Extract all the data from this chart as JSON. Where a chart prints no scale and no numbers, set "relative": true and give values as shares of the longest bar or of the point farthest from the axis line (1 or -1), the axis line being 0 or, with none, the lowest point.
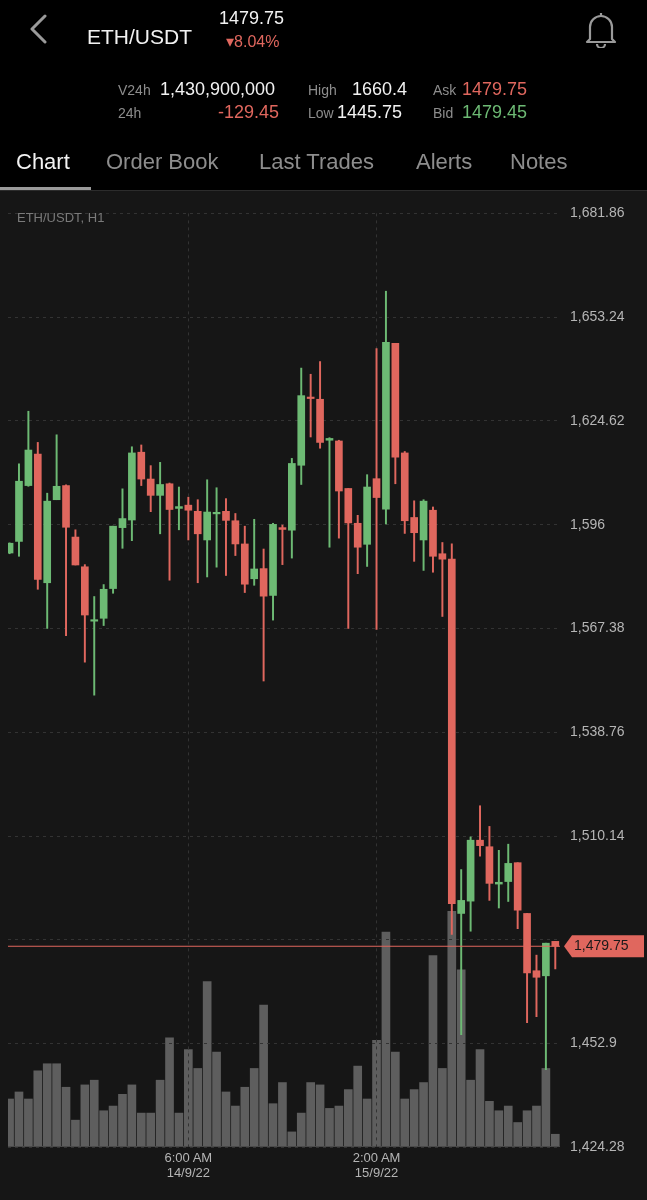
{
  "chart_data": [
    {
      "type": "candlestick",
      "title": "ETH/USDT",
      "subtitle": "ETH/USDT, H1",
      "annotations": [
        "1479.75",
        "▾8.04%",
        "V24h",
        "1,430,900,000",
        "High",
        "1660.4",
        "Ask",
        "1479.75",
        "24h",
        "-129.45",
        "Low",
        "1445.75",
        "Bid",
        "1479.45",
        "Chart",
        "Order Book",
        "Last Trades",
        "Alerts",
        "Notes"
      ],
      "x": [
        "--09-13T11:00",
        "--09-13T12:00",
        "--09-13T13:00",
        "--09-13T14:00",
        "--09-13T15:00",
        "--09-13T16:00",
        "--09-13T17:00",
        "--09-13T18:00",
        "--09-13T19:00",
        "--09-13T20:00",
        "--09-13T21:00",
        "--09-13T22:00",
        "--09-13T23:00",
        "--09-14T00:00",
        "--09-14T01:00",
        "--09-14T02:00",
        "--09-14T03:00",
        "--09-14T04:00",
        "--09-14T05:00",
        "--09-14T06:00",
        "--09-14T07:00",
        "--09-14T08:00",
        "--09-14T09:00",
        "--09-14T10:00",
        "--09-14T11:00",
        "--09-14T12:00",
        "--09-14T13:00",
        "--09-14T14:00",
        "--09-14T15:00",
        "--09-14T16:00",
        "--09-14T17:00",
        "--09-14T18:00",
        "--09-14T19:00",
        "--09-14T20:00",
        "--09-14T21:00",
        "--09-14T22:00",
        "--09-14T23:00",
        "--09-15T00:00",
        "--09-15T01:00",
        "--09-15T02:00",
        "--09-15T03:00",
        "--09-15T04:00",
        "--09-15T05:00",
        "--09-15T06:00",
        "--09-15T07:00",
        "--09-15T08:00",
        "--09-15T09:00",
        "--09-15T10:00",
        "--09-15T11:00",
        "--09-15T12:00",
        "--09-15T13:00",
        "--09-15T14:00",
        "--09-15T15:00",
        "--09-15T16:00",
        "--09-15T17:00",
        "--09-15T18:00",
        "--09-15T19:00",
        "--09-15T20:00",
        "--09-15T21:00"
      ],
      "ohlc": [
        [
          1588.2,
          1591,
          1588,
          1590.9
        ],
        [
          1591.4,
          1612.8,
          1587.3,
          1608.0
        ],
        [
          1606.8,
          1627.3,
          1606.6,
          1616.6
        ],
        [
          1615.5,
          1618.7,
          1578.2,
          1580.9
        ],
        [
          1580.0,
          1604.7,
          1567.4,
          1602.5
        ],
        [
          1602.9,
          1620.8,
          1602.9,
          1606.6
        ],
        [
          1606.8,
          1607.0,
          1565.4,
          1595.3
        ],
        [
          1592.6,
          1594.6,
          1584.9,
          1584.9
        ],
        [
          1584.4,
          1585.0,
          1558.1,
          1571.1
        ],
        [
          1569.4,
          1576.2,
          1549.0,
          1569.8
        ],
        [
          1570.2,
          1579.5,
          1568.2,
          1578.2
        ],
        [
          1578.4,
          1595.6,
          1577.1,
          1595.6
        ],
        [
          1595.2,
          1605.9,
          1589.5,
          1597.7
        ],
        [
          1597.3,
          1617.5,
          1591.6,
          1615.8
        ],
        [
          1616.0,
          1618.0,
          1606.8,
          1608.6
        ],
        [
          1608.6,
          1612.3,
          1599.6,
          1604.1
        ],
        [
          1604.1,
          1613.2,
          1593.5,
          1607.1
        ],
        [
          1607.3,
          1607.5,
          1580.7,
          1600.2
        ],
        [
          1600.5,
          1606.4,
          1594.6,
          1601.0
        ],
        [
          1601.4,
          1603.6,
          1591.8,
          1600.0
        ],
        [
          1599.7,
          1602.9,
          1580.0,
          1593.5
        ],
        [
          1591.8,
          1608.4,
          1581.6,
          1599.5
        ],
        [
          1599.0,
          1606.2,
          1584.3,
          1599.3
        ],
        [
          1599.7,
          1603.2,
          1582.0,
          1597.2
        ],
        [
          1597.1,
          1599.1,
          1587.5,
          1590.7
        ],
        [
          1590.7,
          1595.6,
          1577.3,
          1579.6
        ],
        [
          1581.1,
          1597.5,
          1579.3,
          1583.8
        ],
        [
          1583.9,
          1589.3,
          1552.9,
          1576.3
        ],
        [
          1576.5,
          1596.4,
          1569.7,
          1596.1
        ],
        [
          1595.2,
          1595.9,
          1585.0,
          1594.7
        ],
        [
          1594.5,
          1614.3,
          1586.8,
          1612.9
        ],
        [
          1612.4,
          1639.2,
          1607.1,
          1631.6
        ],
        [
          1631.1,
          1637.5,
          1620.2,
          1630.8
        ],
        [
          1630.6,
          1641.0,
          1617.1,
          1618.7
        ],
        [
          1619.3,
          1620.0,
          1589.8,
          1619.8
        ],
        [
          1619.1,
          1619.3,
          1592.3,
          1605.3
        ],
        [
          1606.0,
          1606.0,
          1567.4,
          1596.5
        ],
        [
          1596.4,
          1598.6,
          1582.5,
          1589.8
        ],
        [
          1590.6,
          1609.8,
          1584.5,
          1606.4
        ],
        [
          1608.7,
          1644.6,
          1567.1,
          1603.5
        ],
        [
          1600.3,
          1660.4,
          1596.2,
          1646.3
        ],
        [
          1646.0,
          1646.0,
          1607.3,
          1614.6
        ],
        [
          1615.8,
          1616.2,
          1593.6,
          1597.1
        ],
        [
          1598.0,
          1602.6,
          1585.9,
          1593.8
        ],
        [
          1591.8,
          1602.9,
          1583.4,
          1602.5
        ],
        [
          1600.0,
          1600.9,
          1582.9,
          1587.3
        ],
        [
          1588.0,
          1591.1,
          1570.7,
          1586.5
        ],
        [
          1586.5,
          1590.7,
          1483.0,
          1491.5
        ],
        [
          1488.8,
          1500.9,
          1455.4,
          1492.4
        ],
        [
          1492.2,
          1509.9,
          1483.9,
          1509.0
        ],
        [
          1509.0,
          1518.5,
          1504.6,
          1507.5
        ],
        [
          1507.2,
          1512.8,
          1492.4,
          1497.1
        ],
        [
          1496.9,
          1506.2,
          1490.3,
          1497.4
        ],
        [
          1497.6,
          1507.9,
          1492.1,
          1502.6
        ],
        [
          1502.8,
          1502.8,
          1484.6,
          1489.7
        ],
        [
          1488.8,
          1488.8,
          1458.7,
          1472.4
        ],
        [
          1473.0,
          1477.3,
          1460.3,
          1471.2
        ],
        [
          1471.6,
          1480.6,
          1445.75,
          1480.6
        ],
        [
          1481.1,
          1481.1,
          1473.5,
          1479.75
        ]
      ],
      "colors": [
        "#6dba74",
        "#6dba74",
        "#6dba74",
        "#e0675e",
        "#6dba74",
        "#6dba74",
        "#e0675e",
        "#e0675e",
        "#e0675e",
        "#6dba74",
        "#6dba74",
        "#6dba74",
        "#6dba74",
        "#6dba74",
        "#e0675e",
        "#e0675e",
        "#6dba74",
        "#e0675e",
        "#6dba74",
        "#e0675e",
        "#e0675e",
        "#6dba74",
        "#6dba74",
        "#e0675e",
        "#e0675e",
        "#e0675e",
        "#6dba74",
        "#e0675e",
        "#6dba74",
        "#e0675e",
        "#6dba74",
        "#6dba74",
        "#e0675e",
        "#e0675e",
        "#6dba74",
        "#e0675e",
        "#e0675e",
        "#e0675e",
        "#6dba74",
        "#e0675e",
        "#6dba74",
        "#e0675e",
        "#e0675e",
        "#e0675e",
        "#6dba74",
        "#e0675e",
        "#e0675e",
        "#e0675e",
        "#6dba74",
        "#6dba74",
        "#e0675e",
        "#e0675e",
        "#6dba74",
        "#6dba74",
        "#e0675e",
        "#e0675e",
        "#e0675e",
        "#6dba74",
        "#e0675e"
      ],
      "xlim": [
        "--09-13T10:50",
        "--09-15T21:30"
      ],
      "xticks": [
        {
          "value": "--09-14T06:00",
          "label": "6:00 AM\n14/9/22"
        },
        {
          "value": "--09-15T02:00",
          "label": "2:00 AM\n15/9/22"
        }
      ],
      "ylim": [
        1424.28,
        1681.86
      ],
      "yticks": [
        {
          "value": 1424.28,
          "label": "1,424.28"
        },
        {
          "value": 1452.9,
          "label": "1,452.9"
        },
        {
          "value": 1481.52,
          "label": null
        },
        {
          "value": 1510.14,
          "label": "1,510.14"
        },
        {
          "value": 1538.76,
          "label": "1,538.76"
        },
        {
          "value": 1567.38,
          "label": "1,567.38"
        },
        {
          "value": 1596,
          "label": "1,596"
        },
        {
          "value": 1624.62,
          "label": "1,624.62"
        },
        {
          "value": 1653.24,
          "label": "1,653.24"
        },
        {
          "value": 1681.86,
          "label": "1,681.86"
        }
      ],
      "grid": true,
      "ref_lines": [
        {
          "axis": "y",
          "value": 1479.75,
          "label": "1,479.75",
          "color": "#e0675e"
        }
      ]
    },
    {
      "type": "bar",
      "relative": true,
      "color": "#5e5e5e",
      "xlim": [
        "--09-13T10:50",
        "--09-15T21:30"
      ],
      "x": [
        "--09-13T11:00",
        "--09-13T12:00",
        "--09-13T13:00",
        "--09-13T14:00",
        "--09-13T15:00",
        "--09-13T16:00",
        "--09-13T17:00",
        "--09-13T18:00",
        "--09-13T19:00",
        "--09-13T20:00",
        "--09-13T21:00",
        "--09-13T22:00",
        "--09-13T23:00",
        "--09-14T00:00",
        "--09-14T01:00",
        "--09-14T02:00",
        "--09-14T03:00",
        "--09-14T04:00",
        "--09-14T05:00",
        "--09-14T06:00",
        "--09-14T07:00",
        "--09-14T08:00",
        "--09-14T09:00",
        "--09-14T10:00",
        "--09-14T11:00",
        "--09-14T12:00",
        "--09-14T13:00",
        "--09-14T14:00",
        "--09-14T15:00",
        "--09-14T16:00",
        "--09-14T17:00",
        "--09-14T18:00",
        "--09-14T19:00",
        "--09-14T20:00",
        "--09-14T21:00",
        "--09-14T22:00",
        "--09-14T23:00",
        "--09-15T00:00",
        "--09-15T01:00",
        "--09-15T02:00",
        "--09-15T03:00",
        "--09-15T04:00",
        "--09-15T05:00",
        "--09-15T06:00",
        "--09-15T07:00",
        "--09-15T08:00",
        "--09-15T09:00",
        "--09-15T10:00",
        "--09-15T11:00",
        "--09-15T12:00",
        "--09-15T13:00",
        "--09-15T14:00",
        "--09-15T15:00",
        "--09-15T16:00",
        "--09-15T17:00",
        "--09-15T18:00",
        "--09-15T19:00",
        "--09-15T20:00",
        "--09-15T21:00"
      ],
      "values": [
        0.2,
        0.23,
        0.2,
        0.32,
        0.35,
        0.35,
        0.25,
        0.11,
        0.26,
        0.28,
        0.15,
        0.17,
        0.22,
        0.26,
        0.14,
        0.14,
        0.28,
        0.46,
        0.14,
        0.41,
        0.33,
        0.7,
        0.4,
        0.23,
        0.17,
        0.25,
        0.33,
        0.6,
        0.18,
        0.27,
        0.06,
        0.14,
        0.27,
        0.26,
        0.16,
        0.17,
        0.24,
        0.34,
        0.2,
        0.45,
        0.91,
        0.4,
        0.2,
        0.24,
        0.27,
        0.81,
        0.33,
        1,
        0.75,
        0.28,
        0.41,
        0.19,
        0.15,
        0.17,
        0.1,
        0.15,
        0.17,
        0.33,
        0.05
      ]
    }
  ]
}
